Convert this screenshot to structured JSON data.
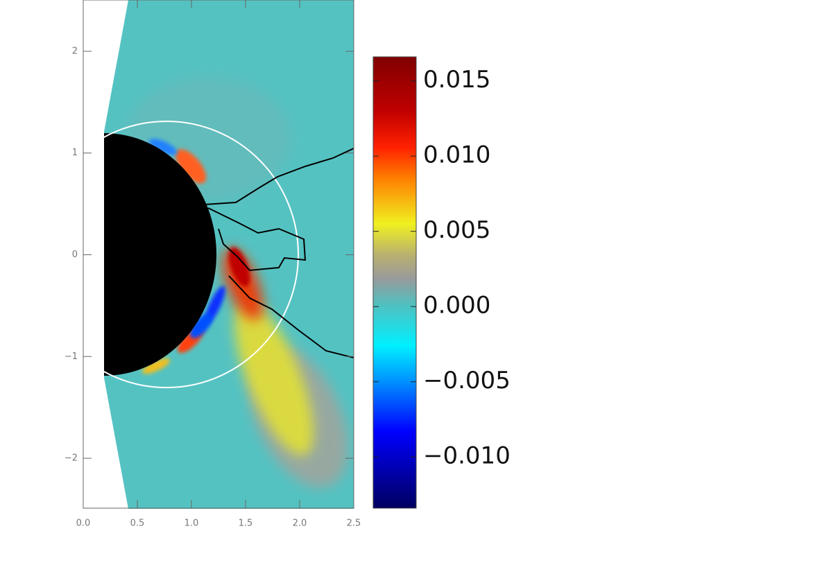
{
  "chart_data": {
    "type": "heatmap",
    "xlim": [
      0,
      2.5
    ],
    "ylim": [
      -2.5,
      2.5
    ],
    "xticks": [
      {
        "value": 0,
        "label": "0.0"
      },
      0.5,
      {
        "value": 1,
        "label": "1.0"
      },
      1.5,
      {
        "value": 2,
        "label": "2.0"
      },
      2.5
    ],
    "yticks": [
      {
        "value": -2,
        "label": "−2"
      },
      {
        "value": -1,
        "label": "−1"
      },
      0,
      1,
      2
    ],
    "colorbar": {
      "lim": [
        -0.0134,
        0.0166
      ],
      "ticks": [
        {
          "value": -0.01,
          "label": "−0.010"
        },
        {
          "value": -0.005,
          "label": "−0.005"
        },
        {
          "value": 0,
          "label": "0.000"
        },
        {
          "value": 0.005,
          "label": "0.005"
        },
        {
          "value": 0.01,
          "label": "0.010"
        },
        {
          "value": 0.015,
          "label": "0.015"
        }
      ]
    }
  }
}
